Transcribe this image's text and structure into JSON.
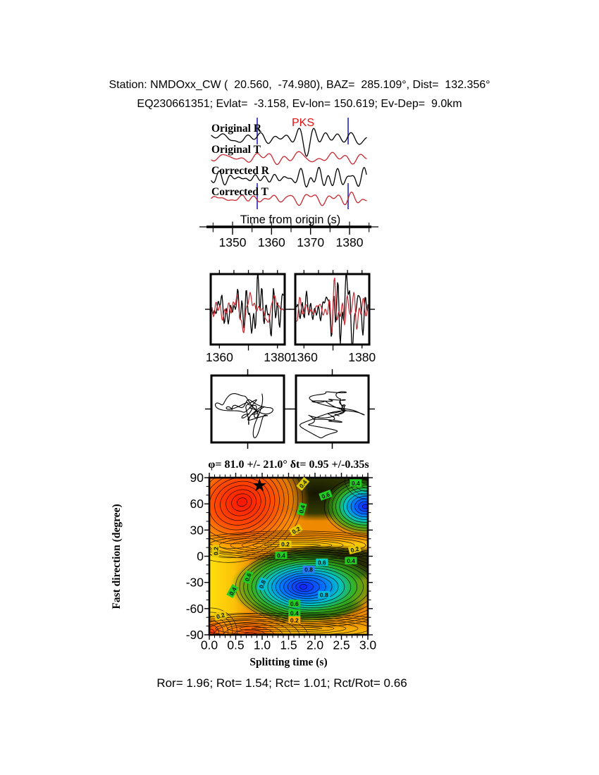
{
  "header": {
    "line1": "Station: NMDOxx_CW (  20.560,  -74.980), BAZ=  285.109°, Dist=  132.356°",
    "line2": "EQ230661351; Evlat=  -3.158, Ev-lon= 150.619; Ev-Dep=  9.0km"
  },
  "stats_line": "Ror= 1.96; Rot= 1.54; Rct= 1.01; Rct/Rot= 0.66",
  "colors": {
    "trace_r": "#000000",
    "trace_t": "#c82830",
    "window_marker": "#2727bb",
    "phase": "#e01010",
    "axis": "#000000"
  },
  "chart_data": [
    {
      "type": "line",
      "panel": "waveform-traces",
      "x_axis": {
        "title": "Time from origin (s)",
        "tick_labels": [
          "1350",
          "1360",
          "1370",
          "1380"
        ],
        "tick_values": [
          1350,
          1360,
          1370,
          1380
        ],
        "range_s": [
          1343.5,
          1386.0
        ]
      },
      "traces": [
        {
          "label": "Original R",
          "color": "#000000"
        },
        {
          "label": "Original T",
          "color": "#c82830"
        },
        {
          "label": "Corrected R",
          "color": "#000000"
        },
        {
          "label": "Corrected T",
          "color": "#c82830"
        }
      ],
      "phase_pick": {
        "label": "PKS",
        "color": "#e01010"
      },
      "analysis_window_s": [
        1356.3,
        1379.7
      ]
    },
    {
      "type": "line",
      "panel": "windowed-waveforms",
      "range_s": [
        1357.0,
        1382.5
      ],
      "series": [
        "R",
        "T"
      ],
      "panels": [
        {
          "name": "original-window",
          "tick_labels": [
            "1360",
            "1380"
          ],
          "tick_values": [
            1360,
            1380
          ]
        },
        {
          "name": "corrected-window",
          "tick_labels": [
            "1360",
            "1380"
          ],
          "tick_values": [
            1360,
            1380
          ]
        }
      ]
    },
    {
      "type": "scatter",
      "panel": "particle-motion",
      "panels": [
        "original-particle-motion",
        "corrected-particle-motion"
      ]
    },
    {
      "type": "heatmap",
      "panel": "splitting-misfit-surface",
      "title": "φ= 81.0 +/- 21.0° δt= 0.95 +/-0.35s",
      "xlabel": "Splitting time (s)",
      "ylabel": "Fast direction (degree)",
      "xlim": [
        0.0,
        3.0
      ],
      "ylim": [
        -90,
        90
      ],
      "xtick_labels": [
        "0.0",
        "0.5",
        "1.0",
        "1.5",
        "2.0",
        "2.5",
        "3.0"
      ],
      "xtick_values": [
        0.0,
        0.5,
        1.0,
        1.5,
        2.0,
        2.5,
        3.0
      ],
      "ytick_labels": [
        "90",
        "60",
        "30",
        "0",
        "-30",
        "-60",
        "-90"
      ],
      "ytick_values": [
        90,
        60,
        30,
        0,
        -30,
        -60,
        -90
      ],
      "best": {
        "phi_deg": 81.0,
        "phi_err_deg": 21.0,
        "dt_s": 0.95,
        "dt_err_s": 0.35
      },
      "star": {
        "dt_s": 0.95,
        "phi_deg": 81.0
      },
      "contour_levels": [
        0.2,
        0.4,
        0.6,
        0.8
      ],
      "extrema": [
        {
          "kind": "maximum",
          "dt_s": 0.62,
          "phi_deg": 62
        },
        {
          "kind": "minimum",
          "dt_s": 1.78,
          "phi_deg": -35
        },
        {
          "kind": "minimum",
          "dt_s": 2.95,
          "phi_deg": 57
        }
      ],
      "labels": [
        {
          "v": "0.4",
          "t": 1.77,
          "phi": 83,
          "rot": -50,
          "c": "#ddc800"
        },
        {
          "v": "0.6",
          "t": 2.2,
          "phi": 70,
          "rot": -20,
          "c": "#22cc22"
        },
        {
          "v": "0.4",
          "t": 2.77,
          "phi": 84,
          "rot": 0,
          "c": "#22cc22"
        },
        {
          "v": "0.4",
          "t": 1.75,
          "phi": 54,
          "rot": -75,
          "c": "#22cc22"
        },
        {
          "v": "0.2",
          "t": 1.64,
          "phi": 30,
          "rot": -30,
          "c": "#e8c800"
        },
        {
          "v": "0.2",
          "t": 1.44,
          "phi": 14,
          "rot": 0,
          "c": "#e8c800"
        },
        {
          "v": "0.4",
          "t": 1.36,
          "phi": 1,
          "rot": 0,
          "c": "#22cc22"
        },
        {
          "v": "0.2",
          "t": 0.12,
          "phi": 6,
          "rot": -90,
          "c": "#e8c800"
        },
        {
          "v": "0.2",
          "t": 2.75,
          "phi": 8,
          "rot": -15,
          "c": "#e8c800"
        },
        {
          "v": "0.4",
          "t": 2.68,
          "phi": -5,
          "rot": 0,
          "c": "#22cc22"
        },
        {
          "v": "0.6",
          "t": 2.13,
          "phi": -7,
          "rot": 0,
          "c": "#00cccc"
        },
        {
          "v": "0.8",
          "t": 1.88,
          "phi": -15,
          "rot": 0,
          "c": "#2f7bff"
        },
        {
          "v": "0.6",
          "t": 0.73,
          "phi": -24,
          "rot": -70,
          "c": "#22cc22"
        },
        {
          "v": "0.8",
          "t": 1.0,
          "phi": -32,
          "rot": -70,
          "c": "#00bbdd"
        },
        {
          "v": "0.4",
          "t": 0.44,
          "phi": -40,
          "rot": -60,
          "c": "#22cc22"
        },
        {
          "v": "0.8",
          "t": 2.17,
          "phi": -44,
          "rot": 0,
          "c": "#00bbdd"
        },
        {
          "v": "0.6",
          "t": 1.61,
          "phi": -54,
          "rot": 0,
          "c": "#22cc22"
        },
        {
          "v": "0.4",
          "t": 1.61,
          "phi": -65,
          "rot": 0,
          "c": "#22cc22"
        },
        {
          "v": "0.2",
          "t": 1.61,
          "phi": -73,
          "rot": 0,
          "c": "#ffaa00"
        },
        {
          "v": "0.2",
          "t": 0.21,
          "phi": -68,
          "rot": -15,
          "c": "#e8c800"
        }
      ]
    }
  ]
}
